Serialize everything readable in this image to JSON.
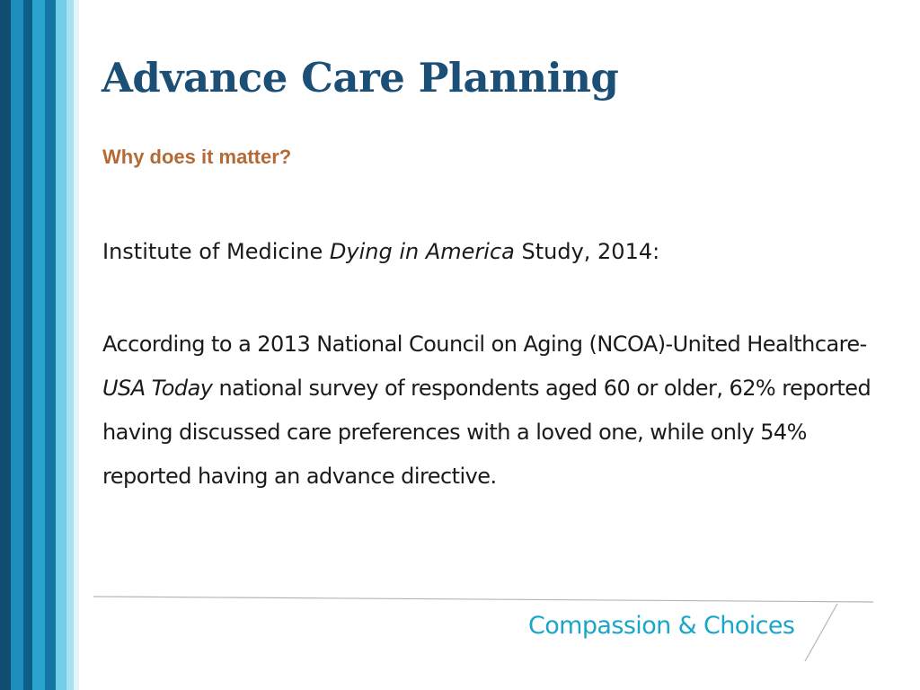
{
  "slide": {
    "title": "Advance Care Planning",
    "subtitle": "Why does it matter?",
    "intro": {
      "prefix": "Institute of Medicine ",
      "italic": "Dying in America",
      "suffix": " Study, 2014:"
    },
    "paragraph": {
      "part1": "According to a 2013 National Council on Aging (NCOA)-United Healthcare-",
      "italic": "USA Today",
      "part2": " national survey of respondents aged 60 or older, 62% reported having discussed care preferences with a loved one, while only 54% reported having an advance directive."
    },
    "logo_text": "Compassion & Choices"
  },
  "colors": {
    "title": "#1b4f76",
    "subtitle": "#b46a35",
    "logo": "#1aa6c8",
    "stripe_dark": "#0f4d73",
    "stripe_mid": "#1d8bb8",
    "stripe_light": "#7fd2ea"
  }
}
